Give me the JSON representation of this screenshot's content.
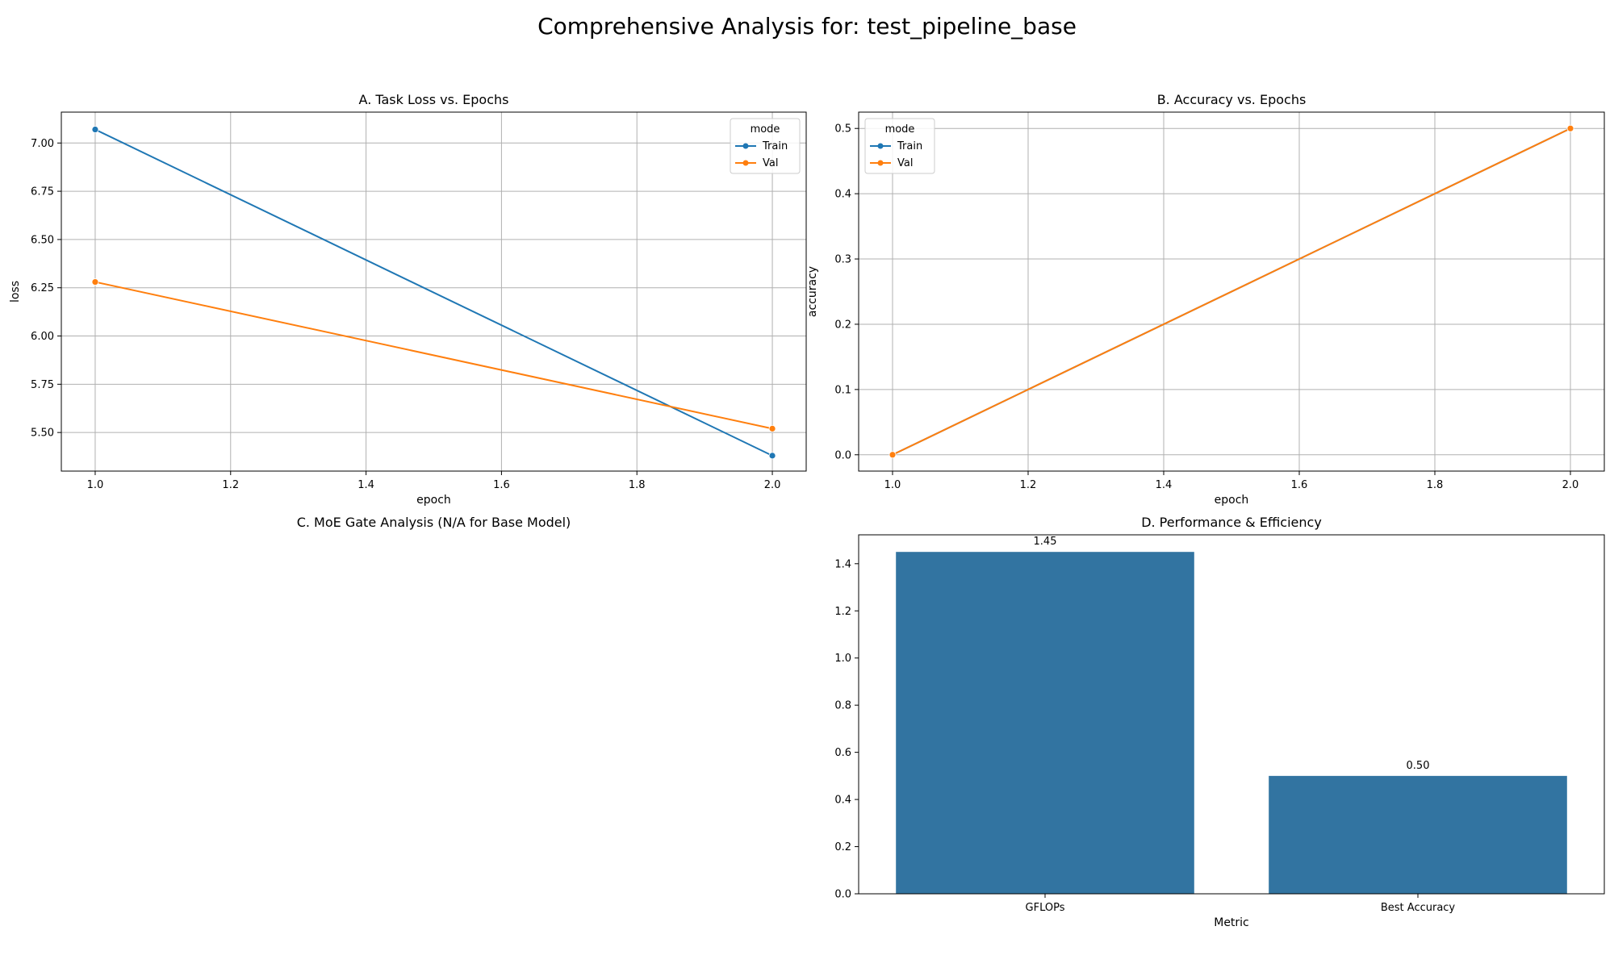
{
  "suptitle": "Comprehensive Analysis for: test_pipeline_base",
  "colors": {
    "train": "#1f77b4",
    "val": "#ff7f0e",
    "bar": "#3274a1",
    "grid": "#b0b0b0"
  },
  "chart_data": [
    {
      "id": "A",
      "type": "line",
      "title": "A. Task Loss vs. Epochs",
      "xlabel": "epoch",
      "ylabel": "loss",
      "xlim": [
        0.95,
        2.05
      ],
      "ylim": [
        5.3,
        7.16
      ],
      "xticks": [
        1.0,
        1.2,
        1.4,
        1.6,
        1.8,
        2.0
      ],
      "xtick_labels": [
        "1.0",
        "1.2",
        "1.4",
        "1.6",
        "1.8",
        "2.0"
      ],
      "yticks": [
        5.5,
        5.75,
        6.0,
        6.25,
        6.5,
        6.75,
        7.0
      ],
      "ytick_labels": [
        "5.50",
        "5.75",
        "6.00",
        "6.25",
        "6.50",
        "6.75",
        "7.00"
      ],
      "grid": true,
      "legend": {
        "title": "mode",
        "placement": "top-right"
      },
      "series": [
        {
          "name": "Train",
          "color": "#1f77b4",
          "x": [
            1.0,
            2.0
          ],
          "y": [
            7.07,
            5.38
          ]
        },
        {
          "name": "Val",
          "color": "#ff7f0e",
          "x": [
            1.0,
            2.0
          ],
          "y": [
            6.28,
            5.52
          ]
        }
      ]
    },
    {
      "id": "B",
      "type": "line",
      "title": "B. Accuracy vs. Epochs",
      "xlabel": "epoch",
      "ylabel": "accuracy",
      "xlim": [
        0.95,
        2.05
      ],
      "ylim": [
        -0.025,
        0.525
      ],
      "xticks": [
        1.0,
        1.2,
        1.4,
        1.6,
        1.8,
        2.0
      ],
      "xtick_labels": [
        "1.0",
        "1.2",
        "1.4",
        "1.6",
        "1.8",
        "2.0"
      ],
      "yticks": [
        0.0,
        0.1,
        0.2,
        0.3,
        0.4,
        0.5
      ],
      "ytick_labels": [
        "0.0",
        "0.1",
        "0.2",
        "0.3",
        "0.4",
        "0.5"
      ],
      "grid": true,
      "legend": {
        "title": "mode",
        "placement": "top-left"
      },
      "series": [
        {
          "name": "Train",
          "color": "#1f77b4",
          "x": [
            1.0,
            2.0
          ],
          "y": [
            0.0,
            0.5
          ]
        },
        {
          "name": "Val",
          "color": "#ff7f0e",
          "x": [
            1.0,
            2.0
          ],
          "y": [
            0.0,
            0.5
          ]
        }
      ]
    },
    {
      "id": "C",
      "type": "empty",
      "title": "C. MoE Gate Analysis (N/A for Base Model)"
    },
    {
      "id": "D",
      "type": "bar",
      "title": "D. Performance & Efficiency",
      "xlabel": "Metric",
      "ylabel": "",
      "ylim": [
        0,
        1.5225
      ],
      "yticks": [
        0.0,
        0.2,
        0.4,
        0.6,
        0.8,
        1.0,
        1.2,
        1.4
      ],
      "ytick_labels": [
        "0.0",
        "0.2",
        "0.4",
        "0.6",
        "0.8",
        "1.0",
        "1.2",
        "1.4"
      ],
      "grid": false,
      "categories": [
        "GFLOPs",
        "Best Accuracy"
      ],
      "values": [
        1.45,
        0.5
      ],
      "value_labels": [
        "1.45",
        "0.50"
      ],
      "color": "#3274a1"
    }
  ]
}
